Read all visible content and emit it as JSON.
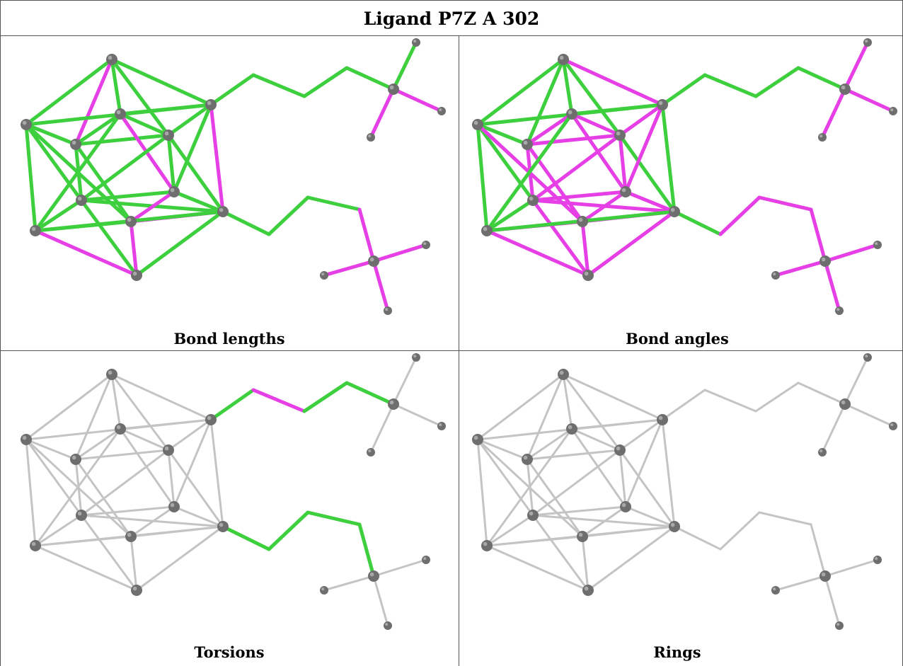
{
  "title": "Ligand P7Z A 302",
  "colors": {
    "ok": "#3ecf3e",
    "outlier": "#e53fe5",
    "neutral": "#c4c4c4",
    "atom": "#6e6e6e",
    "border": "#555555"
  },
  "panels": [
    {
      "caption": "Bond lengths",
      "mode": "bond_lengths"
    },
    {
      "caption": "Bond angles",
      "mode": "bond_angles"
    },
    {
      "caption": "Torsions",
      "mode": "torsions"
    },
    {
      "caption": "Rings",
      "mode": "rings"
    }
  ]
}
